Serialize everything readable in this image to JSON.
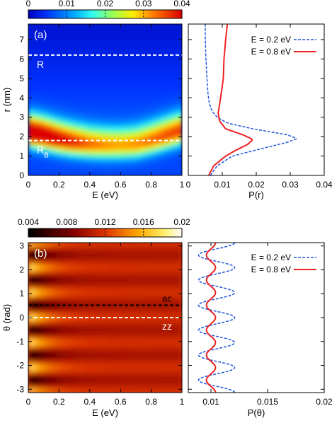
{
  "chart_data": [
    {
      "type": "heatmap",
      "panel_label": "(a)",
      "xlabel": "E (eV)",
      "ylabel": "r (nm)",
      "xlim": [
        0,
        1
      ],
      "ylim": [
        0,
        7.8
      ],
      "xticks": [
        "0",
        "0.2",
        "0.4",
        "0.6",
        "0.8",
        "1"
      ],
      "yticks": [
        "0",
        "1",
        "2",
        "3",
        "4",
        "5",
        "6",
        "7"
      ],
      "colorbar": {
        "ticks": [
          "0",
          "0.01",
          "0.02",
          "0.03",
          "0.04"
        ],
        "range": [
          0,
          0.04
        ],
        "colormap": "jet"
      },
      "dashed_lines": [
        {
          "label": "R",
          "y": 6.2
        },
        {
          "label": "R",
          "label_sub": "B",
          "y": 1.8
        }
      ],
      "ridge": {
        "E": [
          0,
          0.1,
          0.2,
          0.3,
          0.4,
          0.5,
          0.6,
          0.7,
          0.8,
          0.9,
          1.0
        ],
        "r_peak": [
          2.2,
          2.05,
          1.85,
          1.7,
          1.6,
          1.55,
          1.55,
          1.6,
          1.8,
          2.05,
          2.3
        ],
        "peak_value": [
          0.042,
          0.04,
          0.036,
          0.032,
          0.028,
          0.026,
          0.025,
          0.026,
          0.028,
          0.03,
          0.031
        ]
      }
    },
    {
      "type": "line",
      "xlabel": "P(r)",
      "ylabel": "",
      "xlim": [
        0,
        0.04
      ],
      "ylim": [
        0,
        7.8
      ],
      "xticks": [
        "0",
        "0.01",
        "0.02",
        "0.03",
        "0.04"
      ],
      "legend_position": "top-right",
      "series": [
        {
          "name": "E = 0.2 eV",
          "color": "#2255dd",
          "style": "dashed",
          "r": [
            0,
            0.5,
            1,
            1.4,
            1.7,
            1.9,
            2.1,
            2.4,
            2.7,
            3.0,
            3.3,
            3.7,
            4.2,
            5,
            6,
            7,
            7.8
          ],
          "P": [
            0.0065,
            0.0085,
            0.013,
            0.022,
            0.029,
            0.032,
            0.029,
            0.019,
            0.0115,
            0.0085,
            0.007,
            0.0062,
            0.0058,
            0.0055,
            0.0052,
            0.005,
            0.005
          ]
        },
        {
          "name": "E = 0.8 eV",
          "color": "#ee2222",
          "style": "solid",
          "r": [
            0,
            0.5,
            1,
            1.3,
            1.6,
            1.85,
            2.1,
            2.4,
            2.8,
            3.2,
            4,
            5,
            6,
            7,
            7.8
          ],
          "P": [
            0.006,
            0.0075,
            0.011,
            0.014,
            0.0175,
            0.019,
            0.016,
            0.011,
            0.0092,
            0.0088,
            0.0095,
            0.0103,
            0.0105,
            0.011,
            0.0115
          ]
        }
      ]
    },
    {
      "type": "heatmap",
      "panel_label": "(b)",
      "xlabel": "E (eV)",
      "ylabel": "θ (rad)",
      "xlim": [
        0,
        1
      ],
      "ylim": [
        -3.14,
        3.14
      ],
      "xticks": [
        "0",
        "0.2",
        "0.4",
        "0.6",
        "0.8",
        "1"
      ],
      "yticks": [
        "-3",
        "-2",
        "-1",
        "0",
        "1",
        "2",
        "3"
      ],
      "colorbar": {
        "ticks": [
          "0.004",
          "0.008",
          "0.012",
          "0.016",
          "0.02"
        ],
        "range": [
          0.004,
          0.02
        ],
        "colormap": "hot"
      },
      "dashed_lines": [
        {
          "label": "ac",
          "y": 0.52,
          "color": "#000000"
        },
        {
          "label": "zz",
          "y": 0.0,
          "color": "#ffffff"
        }
      ],
      "pattern": {
        "period_rad": 1.047,
        "dark_at_low_E_theta": [
          -2.62,
          -1.57,
          -0.52,
          0.52,
          1.57,
          2.62
        ]
      }
    },
    {
      "type": "line",
      "xlabel": "P(θ)",
      "ylabel": "",
      "xlim": [
        0.008,
        0.02
      ],
      "ylim": [
        -3.14,
        3.14
      ],
      "xticks": [
        "0.01",
        "0.015",
        "0.02"
      ],
      "legend_position": "top-right",
      "series": [
        {
          "name": "E = 0.2 eV",
          "color": "#2255dd",
          "style": "dashed",
          "center": 0.0105,
          "amplitude": 0.0016,
          "period_rad": 1.047,
          "phase_rad": 0.0
        },
        {
          "name": "E = 0.8 eV",
          "color": "#ee2222",
          "style": "solid",
          "center": 0.01,
          "amplitude": 0.0004,
          "period_rad": 1.047,
          "phase_rad": 0.0
        }
      ]
    }
  ]
}
